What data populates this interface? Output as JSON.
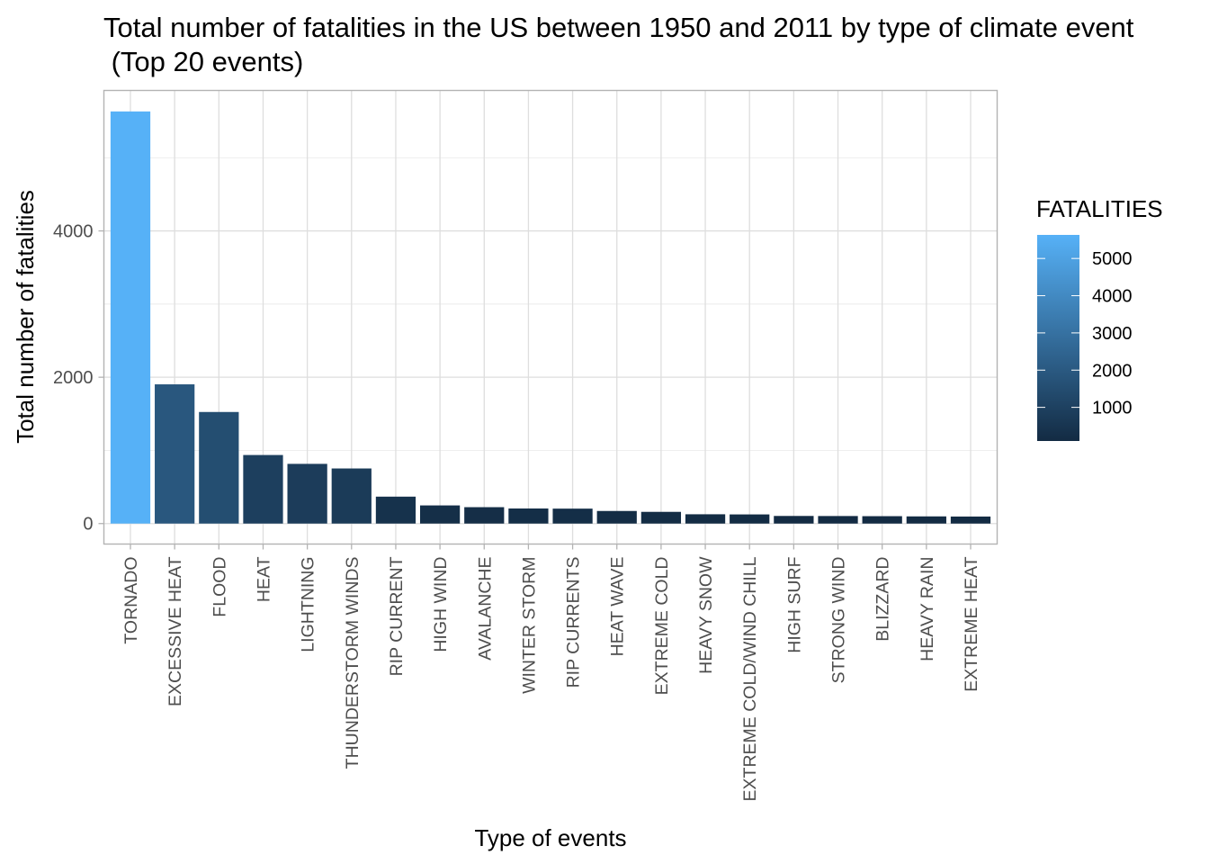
{
  "chart_data": {
    "type": "bar",
    "title_line1": "Total number of fatalities in the US between 1950 and 2011 by type of climate event",
    "title_line2": " (Top 20 events)",
    "xlabel": "Type of events",
    "ylabel": "Total number of fatalities",
    "categories": [
      "TORNADO",
      "EXCESSIVE HEAT",
      "FLOOD",
      "HEAT",
      "LIGHTNING",
      "THUNDERSTORM WINDS",
      "RIP CURRENT",
      "HIGH WIND",
      "AVALANCHE",
      "WINTER STORM",
      "RIP CURRENTS",
      "HEAT WAVE",
      "EXTREME COLD",
      "HEAVY SNOW",
      "EXTREME COLD/WIND CHILL",
      "HIGH SURF",
      "STRONG WIND",
      "BLIZZARD",
      "HEAVY RAIN",
      "EXTREME HEAT"
    ],
    "values": [
      5633,
      1903,
      1525,
      937,
      816,
      753,
      368,
      248,
      224,
      206,
      204,
      172,
      160,
      127,
      125,
      104,
      103,
      101,
      98,
      96
    ],
    "ylim": [
      -280,
      5920
    ],
    "yticks": [
      0,
      2000,
      4000
    ],
    "ytick_labels": [
      "0",
      "2000",
      "4000"
    ],
    "grid": true,
    "legend": {
      "title": "FATALITIES",
      "placement": "right",
      "labels": [
        "5000",
        "4000",
        "3000",
        "2000",
        "1000"
      ],
      "ticks": [
        5000,
        4000,
        3000,
        2000,
        1000
      ],
      "range": [
        96,
        5633
      ],
      "color_low": "#132B43",
      "color_high": "#56B1F7"
    }
  }
}
